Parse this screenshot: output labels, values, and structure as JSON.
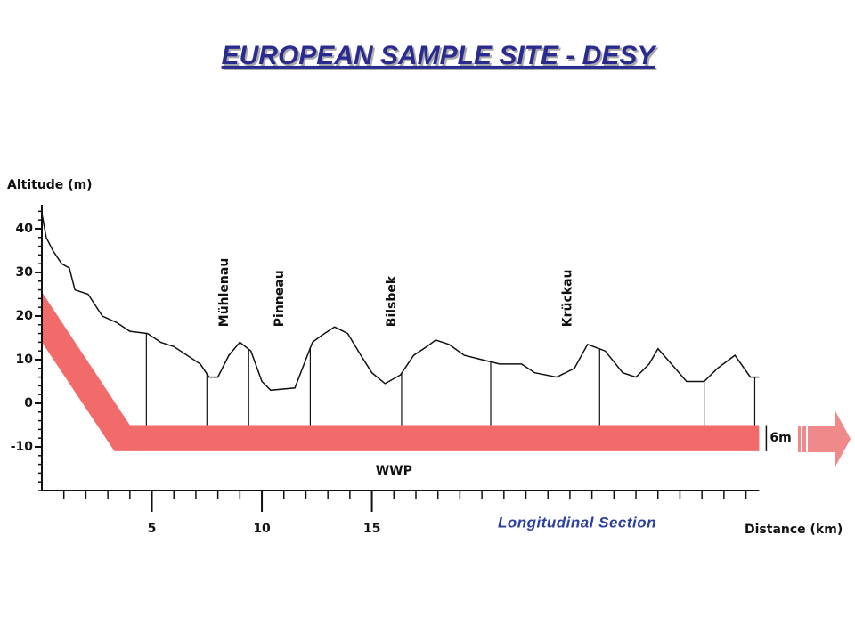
{
  "chart_data": {
    "type": "line",
    "title": "EUROPEAN SAMPLE SITE - DESY",
    "ylabel": "Altitude (m)",
    "xlabel": "Distance (km)",
    "caption": "Longitudinal Section",
    "xlim": [
      0,
      32.6
    ],
    "ylim": [
      -20,
      45.5
    ],
    "xticks": [
      5,
      10,
      15
    ],
    "xminor": [
      1,
      2,
      3,
      4,
      5,
      6,
      7,
      8,
      9,
      10,
      11,
      12,
      13,
      14,
      15,
      16,
      17,
      18,
      19,
      20,
      21,
      22,
      23,
      24,
      25,
      26,
      27,
      28,
      29,
      30,
      31,
      32
    ],
    "yticks": [
      40,
      30,
      20,
      10,
      0,
      -10
    ],
    "yminor": [
      -20,
      -18,
      -16,
      -14,
      -12,
      -10,
      -8,
      -6,
      -4,
      -2,
      0,
      2,
      4,
      6,
      8,
      10,
      12,
      14,
      16,
      18,
      20,
      22,
      24,
      26,
      28,
      30,
      32,
      34,
      36,
      38,
      40,
      42,
      44
    ],
    "color": "#111111",
    "x": [
      0,
      0.2,
      0.5,
      0.9,
      1.25,
      1.5,
      2.1,
      2.75,
      3.4,
      4.0,
      4.8,
      5.4,
      6.0,
      6.6,
      7.2,
      7.6,
      8.0,
      8.5,
      9.0,
      9.5,
      10.0,
      10.4,
      11.5,
      12.3,
      12.7,
      13.3,
      13.9,
      14.5,
      15.0,
      15.6,
      16.3,
      16.9,
      17.5,
      17.9,
      18.5,
      19.2,
      20.0,
      20.8,
      21.8,
      22.4,
      23.4,
      24.2,
      24.8,
      25.6,
      26.4,
      27.0,
      27.6,
      28.0,
      28.7,
      29.3,
      30.1,
      30.7,
      31.5,
      32.2,
      32.6
    ],
    "values": [
      43.5,
      38,
      35,
      32,
      31,
      26,
      25,
      20,
      18.5,
      16.5,
      16,
      14,
      13,
      11,
      9,
      6,
      6,
      11,
      14,
      12,
      5,
      3,
      3.5,
      14,
      15.5,
      17.5,
      16,
      11,
      7,
      4.5,
      6.5,
      11,
      13,
      14.5,
      13.5,
      11,
      10,
      9,
      9,
      7,
      6,
      8,
      13.5,
      12,
      7,
      6,
      9,
      12.5,
      8.5,
      5,
      5,
      8,
      11,
      6,
      6
    ],
    "shafts": [
      4.75,
      7.5,
      9.4,
      12.2,
      16.35,
      20.4,
      25.35,
      30.1,
      32.4
    ],
    "rivers": [
      {
        "label": "Mühlenau",
        "x": 8.3,
        "y": 17.5
      },
      {
        "label": "Pinneau",
        "x": 10.8,
        "y": 17.5
      },
      {
        "label": "Bilsbek",
        "x": 15.9,
        "y": 17.5
      },
      {
        "label": "Krückau",
        "x": 23.9,
        "y": 17.5
      }
    ],
    "tunnel": {
      "label": "WWP",
      "thickness_label": "6m",
      "color": "#f26b6b",
      "top": -5,
      "outline": [
        [
          0,
          25.5
        ],
        [
          4,
          -5
        ],
        [
          32.6,
          -5
        ],
        [
          32.6,
          -11
        ],
        [
          3.3,
          -11
        ],
        [
          0,
          14
        ]
      ]
    }
  }
}
